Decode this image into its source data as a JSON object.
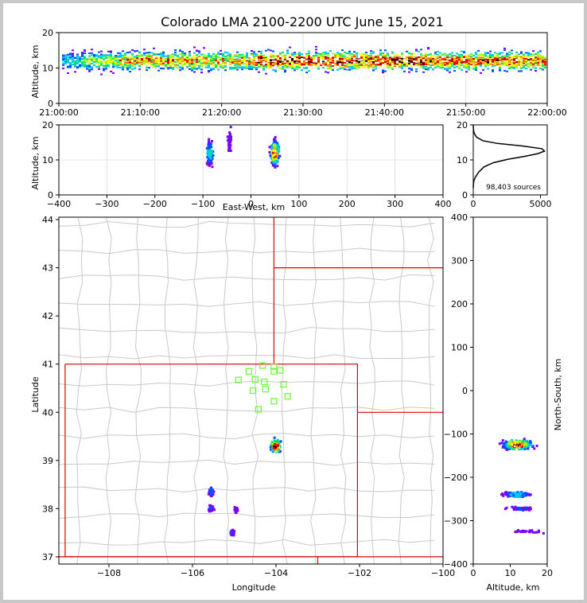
{
  "colors": {
    "density_scale": [
      "#7a00ff",
      "#0050ff",
      "#00c8ff",
      "#00e070",
      "#a0ff00",
      "#ffff00",
      "#ff9000",
      "#ff0000",
      "#c00000",
      "#000000",
      "#ffffff"
    ],
    "station": "#66ff33",
    "state_border": "#e00000",
    "county_border": "#c9c9c9",
    "histogram_line": "#000000"
  },
  "chart_data": [
    {
      "id": "time-height",
      "type": "heatmap",
      "title": "Colorado LMA 2100-2200 UTC June 15, 2021",
      "xlabel": "",
      "ylabel": "Altitude, km",
      "xlim": [
        "21:00:00",
        "22:00:00"
      ],
      "ylim": [
        0,
        20
      ],
      "x_ticks": [
        "21:00:00",
        "21:10:00",
        "21:20:00",
        "21:30:00",
        "21:40:00",
        "21:50:00",
        "22:00:00"
      ],
      "y_ticks": [
        "0",
        "10",
        "20"
      ],
      "grid": true,
      "source_band_km": [
        3,
        18
      ],
      "core_altitude_km": 12
    },
    {
      "id": "ew-height",
      "type": "heatmap",
      "xlabel": "East-West, km",
      "ylabel": "Altitude, km",
      "xlim": [
        -400,
        400
      ],
      "ylim": [
        0,
        20
      ],
      "x_ticks": [
        "−400",
        "−300",
        "−200",
        "−100",
        "0",
        "100",
        "200",
        "300",
        "400"
      ],
      "y_ticks": [
        "0",
        "10",
        "20"
      ],
      "grid": true,
      "clusters": [
        {
          "x": 50,
          "y_min": 2,
          "y_max": 20,
          "core_y": 12,
          "intensity": 1.0
        },
        {
          "x": -85,
          "y_min": 6,
          "y_max": 20,
          "core_y": 12,
          "intensity": 0.35
        },
        {
          "x": -45,
          "y_min": 11,
          "y_max": 20,
          "core_y": 15,
          "intensity": 0.08
        }
      ]
    },
    {
      "id": "altitude-histogram",
      "type": "line",
      "xlabel": "",
      "ylabel": "",
      "xlim": [
        0,
        5500
      ],
      "ylim": [
        0,
        20
      ],
      "x_ticks": [
        "0",
        "5000"
      ],
      "y_ticks": [
        "0",
        "10",
        "20"
      ],
      "annotation": "98,403 sources",
      "series": [
        {
          "x": [
            0,
            10,
            40,
            150,
            400,
            800,
            1500,
            2600,
            3800,
            4800,
            5300,
            5100,
            3600,
            1800,
            700,
            250,
            80,
            20,
            0
          ],
          "y": [
            2,
            3,
            4,
            5,
            6.5,
            8,
            9.2,
            10.2,
            11,
            11.8,
            12.5,
            13.2,
            14,
            14.7,
            15.5,
            16.5,
            17.5,
            18.5,
            20
          ]
        }
      ]
    },
    {
      "id": "plan-view-map",
      "type": "scatter",
      "xlabel": "Longitude",
      "ylabel": "Latitude",
      "xlim": [
        -109.2,
        -100.0
      ],
      "ylim": [
        36.85,
        44.05
      ],
      "x_ticks": [
        "−108",
        "−106",
        "−104",
        "−102",
        "−100"
      ],
      "y_ticks": [
        "37",
        "38",
        "39",
        "40",
        "41",
        "42",
        "43",
        "44"
      ],
      "stations": [
        {
          "lon": -104.65,
          "lat": 40.85
        },
        {
          "lon": -104.05,
          "lat": 40.95
        },
        {
          "lon": -104.05,
          "lat": 40.85
        },
        {
          "lon": -103.9,
          "lat": 40.87
        },
        {
          "lon": -104.9,
          "lat": 40.67
        },
        {
          "lon": -104.5,
          "lat": 40.68
        },
        {
          "lon": -104.28,
          "lat": 40.63
        },
        {
          "lon": -103.82,
          "lat": 40.58
        },
        {
          "lon": -104.55,
          "lat": 40.45
        },
        {
          "lon": -104.25,
          "lat": 40.48
        },
        {
          "lon": -103.72,
          "lat": 40.33
        },
        {
          "lon": -104.05,
          "lat": 40.23
        },
        {
          "lon": -104.42,
          "lat": 40.06
        },
        {
          "lon": -104.32,
          "lat": 40.97
        }
      ],
      "source_clusters": [
        {
          "lon": -104.0,
          "lat": 39.3,
          "intensity": 1.0
        },
        {
          "lon": -105.55,
          "lat": 38.35,
          "intensity": 0.25
        },
        {
          "lon": -105.55,
          "lat": 38.0,
          "intensity": 0.2
        },
        {
          "lon": -104.95,
          "lat": 37.98,
          "intensity": 0.08
        },
        {
          "lon": -105.05,
          "lat": 37.5,
          "intensity": 0.12
        }
      ]
    },
    {
      "id": "ns-height",
      "type": "heatmap",
      "xlabel": "Altitude, km",
      "ylabel": "North-South, km",
      "xlim": [
        0,
        20
      ],
      "ylim": [
        -400,
        400
      ],
      "x_ticks": [
        "0",
        "10",
        "20"
      ],
      "y_ticks": [
        "−400",
        "−300",
        "−200",
        "−100",
        "0",
        "100",
        "200",
        "300",
        "400"
      ],
      "clusters": [
        {
          "y": -125,
          "x_min": 2,
          "x_max": 20,
          "core_x": 12,
          "intensity": 1.0
        },
        {
          "y": -240,
          "x_min": 6,
          "x_max": 20,
          "core_x": 12,
          "intensity": 0.3
        },
        {
          "y": -272,
          "x_min": 7,
          "x_max": 20,
          "core_x": 13,
          "intensity": 0.12
        },
        {
          "y": -325,
          "x_min": 11,
          "x_max": 20,
          "core_x": 15,
          "intensity": 0.04
        }
      ]
    }
  ]
}
